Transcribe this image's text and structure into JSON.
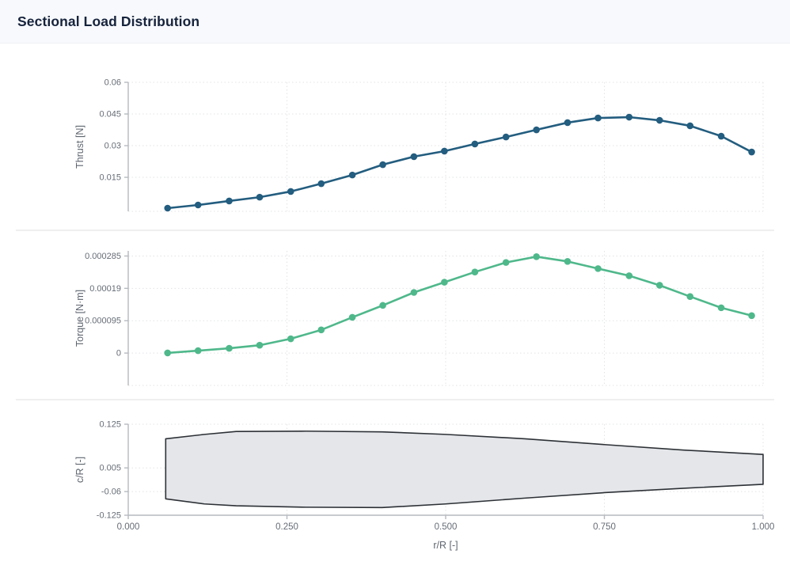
{
  "header": {
    "title": "Sectional Load Distribution"
  },
  "colors": {
    "thrust_line": "#235d7f",
    "torque_line": "#4fb88b",
    "planform_fill": "#e4e6ea",
    "planform_stroke": "#2d3136",
    "grid": "#e2e3e6",
    "axis": "#b6babf",
    "tick_text": "#666d76",
    "divider": "#efefef",
    "header_bg": "#f7f9fc",
    "title_text": "#16233c"
  },
  "x_axis": {
    "title": "r/R [-]",
    "range": [
      0,
      1
    ],
    "ticks": [
      {
        "v": 0,
        "label": "0.000"
      },
      {
        "v": 0.25,
        "label": "0.250"
      },
      {
        "v": 0.5,
        "label": "0.500"
      },
      {
        "v": 0.75,
        "label": "0.750"
      },
      {
        "v": 1,
        "label": "1.000"
      }
    ]
  },
  "chart_data": [
    {
      "type": "line",
      "series_name": "sectional-thrust",
      "ylabel": "Thrust [N]",
      "color": "#235d7f",
      "yrange": [
        -0.0011,
        0.06
      ],
      "yticks": [
        {
          "v": 0.06,
          "label": "0.06"
        },
        {
          "v": 0.045,
          "label": "0.045"
        },
        {
          "v": 0.03,
          "label": "0.03"
        },
        {
          "v": 0.015,
          "label": "0.015"
        }
      ],
      "x": [
        0.062,
        0.11,
        0.159,
        0.207,
        0.256,
        0.304,
        0.353,
        0.401,
        0.45,
        0.498,
        0.546,
        0.595,
        0.643,
        0.692,
        0.74,
        0.789,
        0.837,
        0.885,
        0.934,
        0.982
      ],
      "y": [
        0.0004,
        0.0019,
        0.0038,
        0.0056,
        0.0083,
        0.012,
        0.0161,
        0.021,
        0.0248,
        0.0274,
        0.0308,
        0.0341,
        0.0375,
        0.0409,
        0.0431,
        0.0435,
        0.042,
        0.0394,
        0.0345,
        0.027
      ]
    },
    {
      "type": "line",
      "series_name": "sectional-torque",
      "ylabel": "Torque [N·m]",
      "color": "#4fb88b",
      "yrange": [
        -9.5e-05,
        0.0003
      ],
      "yticks": [
        {
          "v": 0.000285,
          "label": "0.000285"
        },
        {
          "v": 0.00019,
          "label": "0.00019"
        },
        {
          "v": 9.5e-05,
          "label": "0.000095"
        },
        {
          "v": 0,
          "label": "0"
        }
      ],
      "x": [
        0.062,
        0.11,
        0.159,
        0.207,
        0.256,
        0.304,
        0.353,
        0.401,
        0.45,
        0.498,
        0.546,
        0.595,
        0.643,
        0.692,
        0.74,
        0.789,
        0.837,
        0.885,
        0.934,
        0.982
      ],
      "y": [
        5e-07,
        7e-06,
        1.4e-05,
        2.3e-05,
        4.2e-05,
        6.8e-05,
        0.000105,
        0.00014,
        0.000178,
        0.000208,
        0.000238,
        0.000266,
        0.000283,
        0.000269,
        0.000248,
        0.000227,
        0.000199,
        0.000166,
        0.000133,
        0.00011
      ]
    },
    {
      "type": "area",
      "series_name": "blade-planform",
      "ylabel": "c/R [-]",
      "fill": "#e4e6ea",
      "stroke": "#2d3136",
      "yrange": [
        -0.125,
        0.125
      ],
      "yticks": [
        {
          "v": 0.125,
          "label": "0.125"
        },
        {
          "v": 0.005,
          "label": "0.005"
        },
        {
          "v": -0.06,
          "label": "-0.06"
        },
        {
          "v": -0.125,
          "label": "-0.125"
        }
      ],
      "upper": [
        [
          0.059,
          0.085
        ],
        [
          0.12,
          0.097
        ],
        [
          0.17,
          0.105
        ],
        [
          0.28,
          0.106
        ],
        [
          0.4,
          0.104
        ],
        [
          0.5,
          0.097
        ],
        [
          0.625,
          0.085
        ],
        [
          0.75,
          0.069
        ],
        [
          0.875,
          0.054
        ],
        [
          1.0,
          0.042
        ]
      ],
      "lower": [
        [
          0.059,
          -0.08
        ],
        [
          0.12,
          -0.094
        ],
        [
          0.17,
          -0.099
        ],
        [
          0.28,
          -0.103
        ],
        [
          0.4,
          -0.104
        ],
        [
          0.5,
          -0.094
        ],
        [
          0.625,
          -0.078
        ],
        [
          0.75,
          -0.063
        ],
        [
          0.875,
          -0.051
        ],
        [
          1.0,
          -0.04
        ]
      ]
    }
  ]
}
